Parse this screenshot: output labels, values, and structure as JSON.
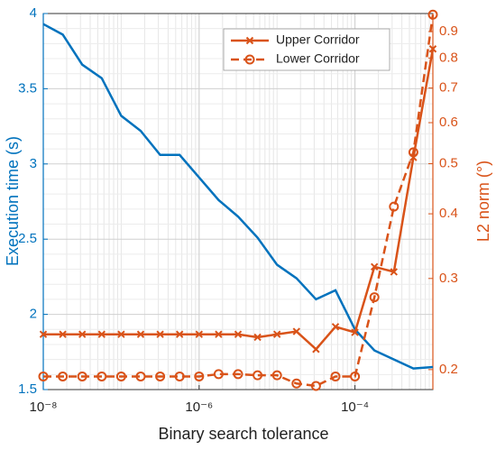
{
  "chart_data": {
    "type": "line",
    "xlabel": "Binary search tolerance",
    "ylabel": "Execution time (s)",
    "y2label": "L2 norm (°)",
    "xscale": "log",
    "y2scale": "log",
    "grid": true,
    "legend": "top",
    "x": [
      1e-08,
      1.778e-08,
      3.162e-08,
      5.623e-08,
      1e-07,
      1.778e-07,
      3.162e-07,
      5.623e-07,
      1e-06,
      1.778e-06,
      3.162e-06,
      5.623e-06,
      1e-05,
      1.778e-05,
      3.162e-05,
      5.623e-05,
      0.0001,
      0.0001778,
      0.0003162,
      0.0005623,
      0.001
    ],
    "xlim": [
      1e-08,
      0.001
    ],
    "xticks": [
      {
        "value": 1e-08,
        "label": "10⁻⁸"
      },
      {
        "value": 1e-06,
        "label": "10⁻⁶"
      },
      {
        "value": 0.0001,
        "label": "10⁻⁴"
      }
    ],
    "ylim": [
      1.5,
      4
    ],
    "yticks": [
      1.5,
      2,
      2.5,
      3,
      3.5,
      4
    ],
    "y2lim": [
      0.183,
      0.975
    ],
    "y2ticks": [
      0.2,
      0.3,
      0.4,
      0.5,
      0.6,
      0.7,
      0.8,
      0.9
    ],
    "series": [
      {
        "name": "Execution time",
        "color": "#0072bd",
        "axis": "y",
        "values": [
          3.93,
          3.86,
          3.66,
          3.57,
          3.32,
          3.22,
          3.06,
          3.06,
          2.91,
          2.76,
          2.65,
          2.51,
          2.33,
          2.24,
          2.1,
          2.16,
          1.9,
          1.76,
          1.7,
          1.64,
          1.65
        ]
      },
      {
        "name": "Upper Corridor",
        "color": "#d95319",
        "axis": "y2",
        "marker": "x",
        "dashed": false,
        "values": [
          0.234,
          0.234,
          0.234,
          0.234,
          0.234,
          0.234,
          0.234,
          0.234,
          0.234,
          0.234,
          0.234,
          0.231,
          0.234,
          0.237,
          0.219,
          0.242,
          0.236,
          0.316,
          0.309,
          0.514,
          0.833
        ]
      },
      {
        "name": "Lower Corridor",
        "color": "#d95319",
        "axis": "y2",
        "marker": "o",
        "dashed": true,
        "values": [
          0.194,
          0.194,
          0.194,
          0.194,
          0.194,
          0.194,
          0.194,
          0.194,
          0.194,
          0.196,
          0.196,
          0.195,
          0.195,
          0.188,
          0.186,
          0.194,
          0.194,
          0.276,
          0.413,
          0.526,
          0.97
        ]
      }
    ]
  }
}
